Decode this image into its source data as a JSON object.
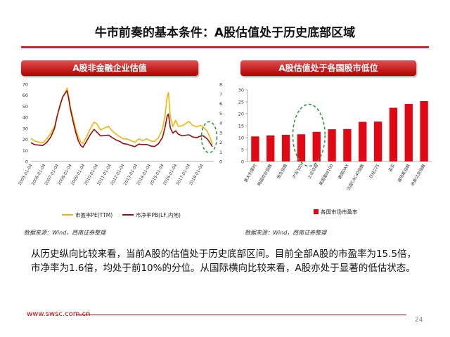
{
  "page": {
    "title": "牛市前奏的基本条件：A股估值处于历史底部区域",
    "left_panel_title": "A股非金融企业估值",
    "right_panel_title": "A股估值处于各国股市低位",
    "source_left": "数据来源：Wind，西南证券整理",
    "source_right": "数据来源：Wind，西南证券整理",
    "body_text": "从历史纵向比较来看，当前A股的估值处于历史底部区间。目前全部A股的市盈率为15.5倍，市净率为1.6倍，均处于前10%的分位。从国际横向比较来看，A股亦处于显著的低估状态。",
    "footer_url": "www.swsc.com.cn",
    "page_number": "24"
  },
  "colors": {
    "accent": "#c00000",
    "pe_line": "#f2b705",
    "pb_line": "#9b0d0d",
    "bar": "#e30613",
    "highlight": "#2e9a48"
  },
  "chart_data": [
    {
      "type": "line",
      "x_ticks": [
        "2005-01-04",
        "2006-01-04",
        "2007-01-04",
        "2008-01-04",
        "2009-01-04",
        "2010-01-04",
        "2011-01-04",
        "2012-01-04",
        "2013-01-04",
        "2014-01-04",
        "2015-01-04",
        "2016-01-04",
        "2017-01-04",
        "2018-01-04"
      ],
      "x_range": [
        2005.0,
        2018.9
      ],
      "y_left_range": [
        0,
        70
      ],
      "y_left_ticks": [
        "0",
        "10",
        "20",
        "30",
        "40",
        "50",
        "60",
        "70"
      ],
      "y_right_range": [
        0,
        8
      ],
      "y_right_ticks": [
        "0",
        "1",
        "2",
        "3",
        "4",
        "5",
        "6",
        "7",
        "8"
      ],
      "series": [
        {
          "name": "市盈率PE(TTM)",
          "axis": "left",
          "x": [
            2005.0,
            2005.3,
            2005.6,
            2005.9,
            2006.2,
            2006.5,
            2006.8,
            2007.0,
            2007.2,
            2007.4,
            2007.6,
            2007.75,
            2007.85,
            2008.0,
            2008.2,
            2008.4,
            2008.6,
            2008.8,
            2008.95,
            2009.2,
            2009.5,
            2009.8,
            2010.0,
            2010.3,
            2010.6,
            2010.9,
            2011.2,
            2011.5,
            2011.8,
            2012.0,
            2012.3,
            2012.6,
            2012.9,
            2013.2,
            2013.5,
            2013.8,
            2014.1,
            2014.4,
            2014.7,
            2015.0,
            2015.2,
            2015.35,
            2015.45,
            2015.6,
            2015.8,
            2016.0,
            2016.2,
            2016.5,
            2016.8,
            2017.0,
            2017.3,
            2017.6,
            2017.9,
            2018.1,
            2018.4,
            2018.6,
            2018.8
          ],
          "values": [
            21,
            19,
            18,
            17,
            20,
            25,
            32,
            42,
            50,
            58,
            62,
            66,
            60,
            50,
            40,
            30,
            22,
            17,
            16,
            22,
            30,
            36,
            34,
            28,
            30,
            32,
            28,
            25,
            22,
            20,
            20,
            19,
            18,
            21,
            19,
            20,
            18,
            18,
            22,
            30,
            42,
            58,
            62,
            40,
            32,
            38,
            32,
            32,
            34,
            36,
            33,
            32,
            33,
            31,
            27,
            22,
            16
          ]
        },
        {
          "name": "市净率PB(LF,内地)",
          "axis": "right",
          "x": [
            2005.0,
            2005.3,
            2005.6,
            2005.9,
            2006.2,
            2006.5,
            2006.8,
            2007.0,
            2007.2,
            2007.4,
            2007.6,
            2007.75,
            2007.85,
            2008.0,
            2008.2,
            2008.4,
            2008.6,
            2008.8,
            2008.95,
            2009.2,
            2009.5,
            2009.8,
            2010.0,
            2010.3,
            2010.6,
            2010.9,
            2011.2,
            2011.5,
            2011.8,
            2012.0,
            2012.3,
            2012.6,
            2012.9,
            2013.2,
            2013.5,
            2013.8,
            2014.1,
            2014.4,
            2014.7,
            2015.0,
            2015.2,
            2015.35,
            2015.45,
            2015.6,
            2015.8,
            2016.0,
            2016.2,
            2016.5,
            2016.8,
            2017.0,
            2017.3,
            2017.6,
            2017.9,
            2018.1,
            2018.4,
            2018.6,
            2018.8
          ],
          "values": [
            2.0,
            1.8,
            1.7,
            1.6,
            1.9,
            2.5,
            3.5,
            4.8,
            5.8,
            6.6,
            7.0,
            7.3,
            6.7,
            5.5,
            4.2,
            3.0,
            2.1,
            1.6,
            1.5,
            2.1,
            2.8,
            3.3,
            3.0,
            2.6,
            2.7,
            2.8,
            2.5,
            2.2,
            2.0,
            1.8,
            1.8,
            1.7,
            1.6,
            1.8,
            1.7,
            1.7,
            1.6,
            1.6,
            1.9,
            2.5,
            3.5,
            4.6,
            4.9,
            3.5,
            3.0,
            3.2,
            2.8,
            2.6,
            2.7,
            2.8,
            2.6,
            2.5,
            2.6,
            2.6,
            2.3,
            2.0,
            1.6
          ]
        }
      ],
      "legend": "bottom"
    },
    {
      "type": "bar",
      "categories": [
        "意大利富时",
        "韩国综合指数",
        "恒生指数",
        "沪深300",
        "上证综指",
        "英国富时100",
        "德国DAX",
        "法国CAC40指数",
        "日经225",
        "孟买",
        "道琼斯指数",
        "纳斯达克指数"
      ],
      "values": [
        10.5,
        10.9,
        11.2,
        11.4,
        12.4,
        13.5,
        13.6,
        16.6,
        16.7,
        22.5,
        24.1,
        25.3
      ],
      "y_range": [
        0,
        30
      ],
      "y_ticks": [
        "0",
        "5",
        "10",
        "15",
        "20",
        "25",
        "30"
      ],
      "legend_entry": "各国市场市盈率",
      "legend": "bottom",
      "highlight_categories": [
        "沪深300",
        "上证综指"
      ]
    }
  ]
}
